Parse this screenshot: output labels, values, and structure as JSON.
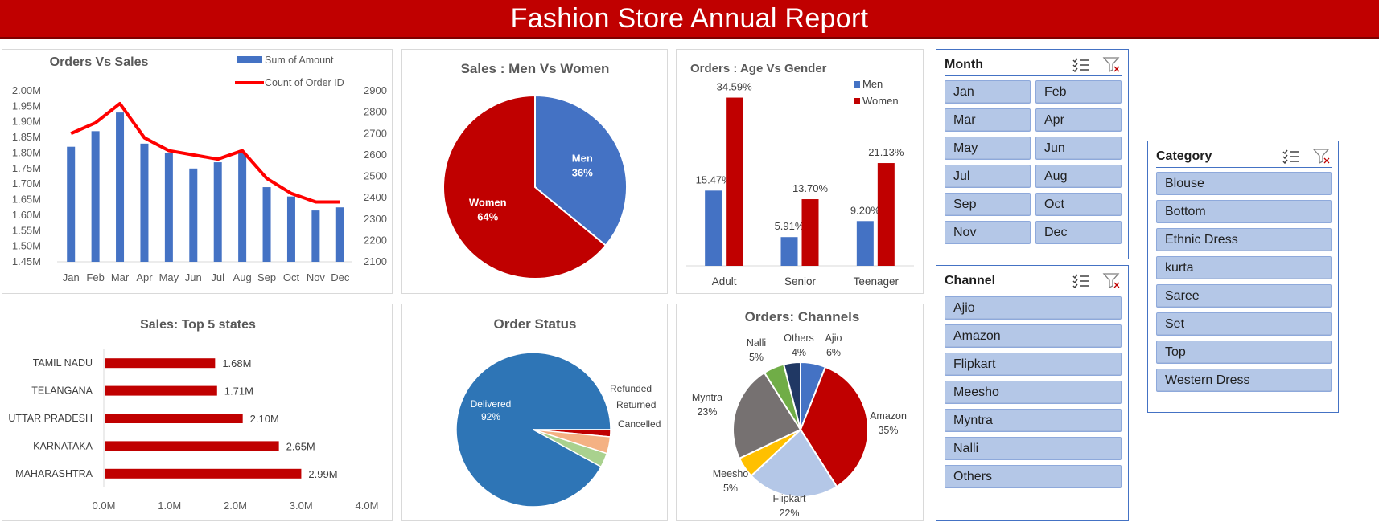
{
  "report_title": "Fashion Store Annual Report",
  "colors": {
    "banner": "#c00000",
    "blue": "#4472c4",
    "red": "#c00000",
    "slicer_item": "#b4c7e7",
    "slicer_border": "#4472c4"
  },
  "icons": {
    "multiselect": "multi-select-icon",
    "clear_filter": "clear-filter-icon"
  },
  "chart_data": [
    {
      "id": "orders_vs_sales",
      "type": "bar+line",
      "title": "Orders Vs Sales",
      "categories": [
        "Jan",
        "Feb",
        "Mar",
        "Apr",
        "May",
        "Jun",
        "Jul",
        "Aug",
        "Sep",
        "Oct",
        "Nov",
        "Dec"
      ],
      "series": [
        {
          "name": "Sum of Amount",
          "type": "bar",
          "axis": "left",
          "values": [
            1.82,
            1.87,
            1.93,
            1.83,
            1.8,
            1.75,
            1.77,
            1.8,
            1.69,
            1.66,
            1.615,
            1.625
          ]
        },
        {
          "name": "Count of Order ID",
          "type": "line",
          "axis": "right",
          "values": [
            2700,
            2750,
            2840,
            2680,
            2620,
            2600,
            2580,
            2620,
            2490,
            2420,
            2380,
            2380
          ]
        }
      ],
      "y_left_ticks": [
        "1.45M",
        "1.50M",
        "1.55M",
        "1.60M",
        "1.65M",
        "1.70M",
        "1.75M",
        "1.80M",
        "1.85M",
        "1.90M",
        "1.95M",
        "2.00M"
      ],
      "y_left_range": [
        1.45,
        2.0
      ],
      "y_right_ticks": [
        "2100",
        "2200",
        "2300",
        "2400",
        "2500",
        "2600",
        "2700",
        "2800",
        "2900"
      ],
      "y_right_range": [
        2100,
        2900
      ],
      "legend": "top-right"
    },
    {
      "id": "men_vs_women",
      "type": "pie",
      "title": "Sales : Men Vs Women",
      "slices": [
        {
          "label": "Men",
          "value": 36,
          "pct": "36%",
          "color": "#4472c4"
        },
        {
          "label": "Women",
          "value": 64,
          "pct": "64%",
          "color": "#c00000"
        }
      ]
    },
    {
      "id": "age_vs_gender",
      "type": "bar",
      "title": "Orders : Age Vs Gender",
      "categories": [
        "Adult",
        "Senior",
        "Teenager"
      ],
      "series": [
        {
          "name": "Men",
          "values": [
            15.47,
            5.91,
            9.2
          ],
          "labels": [
            "15.47%",
            "5.91%",
            "9.20%"
          ],
          "color": "#4472c4"
        },
        {
          "name": "Women",
          "values": [
            34.59,
            13.7,
            21.13
          ],
          "labels": [
            "34.59%",
            "13.70%",
            "21.13%"
          ],
          "color": "#c00000"
        }
      ],
      "ylim": [
        0,
        36
      ],
      "legend": "top-right"
    },
    {
      "id": "top5_states",
      "type": "bar",
      "orientation": "horizontal",
      "title": "Sales: Top 5 states",
      "categories": [
        "TAMIL NADU",
        "TELANGANA",
        "UTTAR PRADESH",
        "KARNATAKA",
        "MAHARASHTRA"
      ],
      "values": [
        1.68,
        1.71,
        2.1,
        2.65,
        2.99
      ],
      "labels": [
        "1.68M",
        "1.71M",
        "2.10M",
        "2.65M",
        "2.99M"
      ],
      "x_ticks": [
        "0.0M",
        "1.0M",
        "2.0M",
        "3.0M",
        "4.0M"
      ],
      "xlim": [
        0,
        4
      ]
    },
    {
      "id": "order_status",
      "type": "pie",
      "title": "Order Status",
      "slices": [
        {
          "label": "Delivered",
          "value": 92,
          "pct": "92%",
          "color": "#2e75b6"
        },
        {
          "label": "Refunded",
          "value": 1.5,
          "pct": "",
          "color": "#c00000"
        },
        {
          "label": "Returned",
          "value": 3.5,
          "pct": "",
          "color": "#f4b183"
        },
        {
          "label": "Cancelled",
          "value": 3,
          "pct": "",
          "color": "#a9d18e"
        }
      ]
    },
    {
      "id": "channels",
      "type": "pie",
      "title": "Orders: Channels",
      "slices": [
        {
          "label": "Ajio",
          "value": 6,
          "pct": "6%",
          "color": "#4472c4"
        },
        {
          "label": "Amazon",
          "value": 35,
          "pct": "35%",
          "color": "#c00000"
        },
        {
          "label": "Flipkart",
          "value": 22,
          "pct": "22%",
          "color": "#b4c7e7"
        },
        {
          "label": "Meesho",
          "value": 5,
          "pct": "5%",
          "color": "#ffc000"
        },
        {
          "label": "Myntra",
          "value": 23,
          "pct": "23%",
          "color": "#767171"
        },
        {
          "label": "Nalli",
          "value": 5,
          "pct": "5%",
          "color": "#70ad47"
        },
        {
          "label": "Others",
          "value": 4,
          "pct": "4%",
          "color": "#203864"
        }
      ]
    }
  ],
  "slicers": {
    "month": {
      "title": "Month",
      "items": [
        "Jan",
        "Feb",
        "Mar",
        "Apr",
        "May",
        "Jun",
        "Jul",
        "Aug",
        "Sep",
        "Oct",
        "Nov",
        "Dec"
      ]
    },
    "channel": {
      "title": "Channel",
      "items": [
        "Ajio",
        "Amazon",
        "Flipkart",
        "Meesho",
        "Myntra",
        "Nalli",
        "Others"
      ]
    },
    "category": {
      "title": "Category",
      "items": [
        "Blouse",
        "Bottom",
        "Ethnic Dress",
        "kurta",
        "Saree",
        "Set",
        "Top",
        "Western Dress"
      ]
    }
  }
}
